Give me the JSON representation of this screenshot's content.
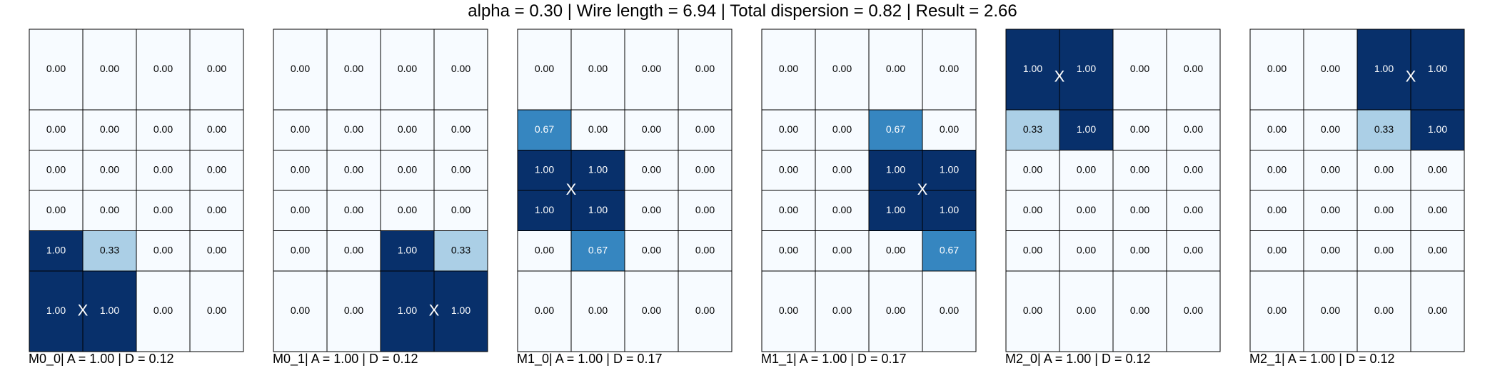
{
  "header": {
    "suptitle": "alpha = 0.30 | Wire length = 6.94 | Total dispersion = 0.82 | Result = 2.66"
  },
  "colors": {
    "zero": "#f7fbff",
    "light": "#abcfe6",
    "mid": "#3686c0",
    "full": "#08306b",
    "grid": "#000000",
    "text_dark": "#000000",
    "text_light": "#ffffff"
  },
  "chart_data": {
    "type": "heatmap",
    "row_heights": [
      2,
      1,
      1,
      1,
      1,
      2
    ],
    "panels": [
      {
        "id": "M0_0",
        "caption": "M0_0| A = 1.00 | D = 0.12",
        "values": [
          [
            0,
            0,
            0,
            0
          ],
          [
            0,
            0,
            0,
            0
          ],
          [
            0,
            0,
            0,
            0
          ],
          [
            0,
            0,
            0,
            0
          ],
          [
            1,
            0.33,
            0,
            0
          ],
          [
            1,
            1,
            0,
            0
          ]
        ],
        "marker": {
          "label": "X",
          "x_col": 1.0,
          "y_row": 5.5
        }
      },
      {
        "id": "M0_1",
        "caption": "M0_1| A = 1.00 | D = 0.12",
        "values": [
          [
            0,
            0,
            0,
            0
          ],
          [
            0,
            0,
            0,
            0
          ],
          [
            0,
            0,
            0,
            0
          ],
          [
            0,
            0,
            0,
            0
          ],
          [
            0,
            0,
            1,
            0.33
          ],
          [
            0,
            0,
            1,
            1
          ]
        ],
        "marker": {
          "label": "X",
          "x_col": 3.0,
          "y_row": 5.5
        }
      },
      {
        "id": "M1_0",
        "caption": "M1_0| A = 1.00 | D = 0.17",
        "values": [
          [
            0,
            0,
            0,
            0
          ],
          [
            0.67,
            0,
            0,
            0
          ],
          [
            1,
            1,
            0,
            0
          ],
          [
            1,
            1,
            0,
            0
          ],
          [
            0,
            0.67,
            0,
            0
          ],
          [
            0,
            0,
            0,
            0
          ]
        ],
        "marker": {
          "label": "X",
          "x_col": 1.0,
          "y_row": 3.0
        }
      },
      {
        "id": "M1_1",
        "caption": "M1_1| A = 1.00 | D = 0.17",
        "values": [
          [
            0,
            0,
            0,
            0
          ],
          [
            0,
            0,
            0.67,
            0
          ],
          [
            0,
            0,
            1,
            1
          ],
          [
            0,
            0,
            1,
            1
          ],
          [
            0,
            0,
            0,
            0.67
          ],
          [
            0,
            0,
            0,
            0
          ]
        ],
        "marker": {
          "label": "X",
          "x_col": 3.0,
          "y_row": 3.0
        }
      },
      {
        "id": "M2_0",
        "caption": "M2_0| A = 1.00 | D = 0.12",
        "values": [
          [
            1,
            1,
            0,
            0
          ],
          [
            0.33,
            1,
            0,
            0
          ],
          [
            0,
            0,
            0,
            0
          ],
          [
            0,
            0,
            0,
            0
          ],
          [
            0,
            0,
            0,
            0
          ],
          [
            0,
            0,
            0,
            0
          ]
        ],
        "marker": {
          "label": "X",
          "x_col": 1.0,
          "y_row": 0.6
        }
      },
      {
        "id": "M2_1",
        "caption": "M2_1| A = 1.00 | D = 0.12",
        "values": [
          [
            0,
            0,
            1,
            1
          ],
          [
            0,
            0,
            0.33,
            1
          ],
          [
            0,
            0,
            0,
            0
          ],
          [
            0,
            0,
            0,
            0
          ],
          [
            0,
            0,
            0,
            0
          ],
          [
            0,
            0,
            0,
            0
          ]
        ],
        "marker": {
          "label": "X",
          "x_col": 3.0,
          "y_row": 0.6
        }
      }
    ]
  }
}
